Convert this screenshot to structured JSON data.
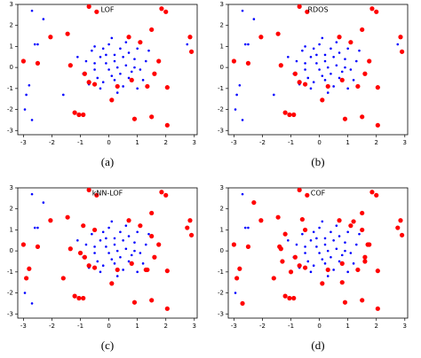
{
  "chart_data": [
    {
      "type": "scatter",
      "title": "LOF",
      "caption": "(a)",
      "xlim": [
        -3.2,
        3.1
      ],
      "ylim": [
        -3.2,
        3.0
      ],
      "xticks": [
        -3,
        -2,
        -1,
        0,
        1,
        2,
        3
      ],
      "yticks": [
        -3,
        -2,
        -1,
        0,
        1,
        2,
        3
      ],
      "series": [
        {
          "color": "#0000ff",
          "x": [
            0.2,
            -0.3,
            0.6,
            0.1,
            -0.5,
            0.9,
            0.4,
            -0.2,
            0.7,
            1.1,
            -0.8,
            0.0,
            0.5,
            -0.6,
            1.0,
            0.3,
            -0.1,
            0.8,
            -0.4,
            0.2,
            1.3,
            -0.9,
            0.6,
            -0.3,
            0.4,
            0.0,
            1.2,
            -0.7,
            0.9,
            -0.2,
            0.5,
            0.1,
            -1.1,
            1.4,
            0.3,
            0.7,
            -0.5,
            0.2,
            1.0,
            -0.1,
            -2.7,
            -2.3,
            -2.6,
            -2.5,
            -2.8,
            -2.9,
            -2.95,
            -2.7,
            -1.6,
            2.75,
            -0.5
          ],
          "values": [
            0.3,
            0.5,
            0.1,
            -0.4,
            -0.1,
            0.4,
            0.9,
            -0.7,
            -0.5,
            -0.1,
            0.3,
            1.1,
            -0.9,
            0.8,
            0.9,
            0.0,
            0.2,
            -0.2,
            -0.5,
            0.6,
            0.3,
            -0.3,
            1.2,
            -1.0,
            -0.3,
            -0.1,
            -0.6,
            -0.8,
            0.0,
            0.9,
            0.5,
            1.4,
            0.5,
            0.8,
            -1.2,
            0.7,
            0.2,
            -0.6,
            -1.0,
            0.6,
            2.7,
            2.3,
            1.1,
            1.1,
            -0.85,
            -1.3,
            -2.0,
            -2.5,
            -1.3,
            1.1,
            1.0
          ]
        },
        {
          "color": "#ff0000",
          "x": [
            -0.7,
            -0.43,
            -1.45,
            -2.05,
            -3.0,
            -2.5,
            -1.35,
            -0.85,
            -0.7,
            -0.5,
            -1.2,
            -1.05,
            -0.9,
            0.1,
            0.3,
            0.9,
            1.5,
            2.05,
            2.05,
            1.35,
            0.8,
            1.6,
            1.75,
            1.1,
            1.85,
            2.0,
            1.5,
            0.7,
            2.9,
            2.85
          ],
          "values": [
            2.9,
            2.65,
            1.6,
            1.45,
            0.3,
            0.2,
            0.1,
            -0.3,
            -0.7,
            -0.8,
            -2.15,
            -2.25,
            -2.25,
            -1.55,
            -0.9,
            -2.45,
            -2.35,
            -2.75,
            -0.95,
            -0.9,
            -0.6,
            -0.3,
            0.3,
            1.2,
            2.8,
            2.65,
            1.8,
            1.45,
            0.75,
            1.45
          ]
        }
      ]
    },
    {
      "type": "scatter",
      "title": "RDOS",
      "caption": "(b)",
      "xlim": [
        -3.2,
        3.1
      ],
      "ylim": [
        -3.2,
        3.0
      ],
      "xticks": [
        -3,
        -2,
        -1,
        0,
        1,
        2,
        3
      ],
      "yticks": [
        -3,
        -2,
        -1,
        0,
        1,
        2,
        3
      ],
      "series": [
        {
          "color": "#0000ff",
          "x": [
            0.2,
            -0.3,
            0.6,
            0.1,
            -0.5,
            0.9,
            0.4,
            -0.2,
            0.7,
            1.1,
            -0.8,
            0.0,
            0.5,
            -0.6,
            1.0,
            0.3,
            -0.1,
            0.8,
            -0.4,
            0.2,
            1.3,
            -0.9,
            0.6,
            -0.3,
            0.4,
            0.0,
            1.2,
            -0.7,
            0.9,
            -0.2,
            0.5,
            0.1,
            -1.1,
            1.4,
            0.3,
            0.7,
            -0.5,
            0.2,
            1.0,
            -0.1,
            -2.7,
            -2.3,
            -2.6,
            -2.5,
            -2.8,
            -2.9,
            -2.95,
            -2.7,
            -1.6,
            2.75,
            -0.5
          ],
          "values": [
            0.3,
            0.5,
            0.1,
            -0.4,
            -0.1,
            0.4,
            0.9,
            -0.7,
            -0.5,
            -0.1,
            0.3,
            1.1,
            -0.9,
            0.8,
            0.9,
            0.0,
            0.2,
            -0.2,
            -0.5,
            0.6,
            0.3,
            -0.3,
            1.2,
            -1.0,
            -0.3,
            -0.1,
            -0.6,
            -0.8,
            0.0,
            0.9,
            0.5,
            1.4,
            0.5,
            0.8,
            -1.2,
            0.7,
            0.2,
            -0.6,
            -1.0,
            0.6,
            2.7,
            2.3,
            1.1,
            1.1,
            -0.85,
            -1.3,
            -2.0,
            -2.5,
            -1.3,
            1.1,
            1.0
          ]
        },
        {
          "color": "#ff0000",
          "x": [
            -0.7,
            -0.43,
            -1.45,
            -2.05,
            -3.0,
            -2.5,
            -1.35,
            -0.85,
            -0.7,
            -0.5,
            -1.2,
            -1.05,
            -0.9,
            0.1,
            0.3,
            0.9,
            1.5,
            2.05,
            2.05,
            1.35,
            0.8,
            1.6,
            1.75,
            1.1,
            1.85,
            2.0,
            1.5,
            0.7,
            2.9,
            2.85
          ],
          "values": [
            2.9,
            2.65,
            1.6,
            1.45,
            0.3,
            0.2,
            0.1,
            -0.3,
            -0.7,
            -0.8,
            -2.15,
            -2.25,
            -2.25,
            -1.55,
            -0.9,
            -2.45,
            -2.35,
            -2.75,
            -0.95,
            -0.9,
            -0.6,
            -0.3,
            0.3,
            1.2,
            2.8,
            2.65,
            1.8,
            1.45,
            0.75,
            1.45
          ]
        }
      ]
    },
    {
      "type": "scatter",
      "title": "kNN-LOF",
      "caption": "(c)",
      "xlim": [
        -3.2,
        3.1
      ],
      "ylim": [
        -3.2,
        3.0
      ],
      "xticks": [
        -3,
        -2,
        -1,
        0,
        1,
        2,
        3
      ],
      "yticks": [
        -3,
        -2,
        -1,
        0,
        1,
        2,
        3
      ],
      "series": [
        {
          "color": "#0000ff",
          "x": [
            0.2,
            -0.3,
            0.6,
            0.1,
            -0.5,
            0.9,
            0.4,
            -0.2,
            0.7,
            1.1,
            -0.8,
            0.0,
            0.5,
            -0.6,
            1.0,
            0.3,
            -0.1,
            0.8,
            -0.4,
            0.2,
            1.3,
            -0.9,
            0.6,
            -0.3,
            0.4,
            0.0,
            1.2,
            -0.7,
            0.9,
            -0.2,
            0.5,
            0.1,
            -1.1,
            1.4,
            0.3,
            0.7,
            -0.5,
            0.2,
            1.0,
            -0.1,
            -2.7,
            -2.3,
            -2.6,
            -2.5,
            -2.95,
            -2.7
          ],
          "values": [
            0.3,
            0.5,
            0.1,
            -0.4,
            -0.1,
            0.4,
            0.9,
            -0.7,
            -0.5,
            -0.1,
            0.3,
            1.1,
            -0.9,
            0.8,
            0.9,
            0.0,
            0.2,
            -0.2,
            -0.5,
            0.6,
            0.3,
            -0.3,
            1.2,
            -1.0,
            -0.3,
            -0.1,
            -0.6,
            -0.8,
            0.0,
            0.9,
            0.5,
            1.4,
            0.5,
            0.8,
            -1.2,
            0.7,
            0.2,
            -0.6,
            -1.0,
            0.6,
            2.7,
            2.3,
            1.1,
            1.1,
            -2.0,
            -2.5
          ]
        },
        {
          "color": "#ff0000",
          "x": [
            -0.7,
            -0.43,
            -1.45,
            -2.05,
            -3.0,
            -2.5,
            -1.35,
            -0.85,
            -0.7,
            -0.5,
            -1.2,
            -1.05,
            -0.9,
            0.1,
            0.3,
            0.9,
            1.5,
            2.05,
            2.05,
            1.35,
            0.8,
            1.6,
            1.75,
            1.1,
            1.85,
            2.0,
            1.5,
            0.7,
            2.9,
            2.85,
            -2.8,
            -2.9,
            -1.6,
            -0.9,
            -1.0,
            1.5,
            1.3,
            -0.5,
            2.75
          ],
          "values": [
            2.9,
            2.65,
            1.6,
            1.45,
            0.3,
            0.2,
            0.1,
            -0.3,
            -0.7,
            -0.8,
            -2.15,
            -2.25,
            -2.25,
            -1.55,
            -0.9,
            -2.45,
            -2.35,
            -2.75,
            -0.95,
            -0.9,
            -0.6,
            -0.3,
            0.3,
            1.2,
            2.8,
            2.65,
            1.8,
            1.45,
            0.75,
            1.45,
            -0.85,
            -1.3,
            -1.3,
            1.2,
            -0.1,
            0.7,
            -0.9,
            1.0,
            1.1
          ]
        }
      ]
    },
    {
      "type": "scatter",
      "title": "COF",
      "caption": "(d)",
      "xlim": [
        -3.2,
        3.1
      ],
      "ylim": [
        -3.2,
        3.0
      ],
      "xticks": [
        -3,
        -2,
        -1,
        0,
        1,
        2,
        3
      ],
      "yticks": [
        -3,
        -2,
        -1,
        0,
        1,
        2,
        3
      ],
      "series": [
        {
          "color": "#0000ff",
          "x": [
            0.2,
            -0.3,
            0.6,
            0.1,
            -0.5,
            0.9,
            0.4,
            -0.2,
            0.7,
            1.1,
            -0.8,
            0.0,
            0.5,
            -0.6,
            1.0,
            0.3,
            -0.1,
            0.8,
            -0.4,
            0.2,
            1.3,
            -0.9,
            0.6,
            -0.3,
            0.4,
            0.0,
            1.2,
            -0.7,
            0.9,
            -0.2,
            0.5,
            0.1,
            -1.1,
            1.4,
            0.3,
            0.7,
            -0.5,
            0.2,
            1.0,
            -0.1,
            -2.7,
            -2.6,
            -2.5,
            -2.95
          ],
          "values": [
            0.3,
            0.5,
            0.1,
            -0.4,
            -0.1,
            0.4,
            0.9,
            -0.7,
            -0.5,
            -0.1,
            0.3,
            1.1,
            -0.9,
            0.8,
            0.9,
            0.0,
            0.2,
            -0.2,
            -0.5,
            0.6,
            0.3,
            -0.3,
            1.2,
            -1.0,
            -0.3,
            -0.1,
            -0.6,
            -0.8,
            0.0,
            0.9,
            0.5,
            1.4,
            0.5,
            0.8,
            -1.2,
            0.7,
            0.2,
            -0.6,
            -1.0,
            0.6,
            2.7,
            1.1,
            1.1,
            -2.0
          ]
        },
        {
          "color": "#ff0000",
          "x": [
            -0.7,
            -0.43,
            -1.45,
            -2.05,
            -3.0,
            -2.5,
            -1.35,
            -0.85,
            -0.7,
            -0.5,
            -1.2,
            -1.05,
            -0.9,
            0.1,
            0.3,
            0.9,
            1.5,
            2.05,
            2.05,
            1.35,
            0.8,
            1.6,
            1.75,
            1.1,
            1.85,
            2.0,
            1.5,
            0.7,
            2.9,
            2.85,
            -2.3,
            -2.8,
            -2.9,
            -2.7,
            -1.6,
            2.75,
            -0.5,
            -1.2,
            -1.3,
            -1.0,
            1.5,
            1.6,
            1.2,
            -0.6,
            0.8,
            -1.4,
            1.7
          ],
          "values": [
            2.9,
            2.65,
            1.6,
            1.45,
            0.3,
            0.2,
            0.1,
            -0.3,
            -0.7,
            -0.8,
            -2.15,
            -2.25,
            -2.25,
            -1.55,
            -0.9,
            -2.45,
            -2.35,
            -2.75,
            -0.95,
            -0.9,
            -0.6,
            -0.3,
            0.3,
            1.2,
            2.8,
            2.65,
            1.8,
            1.45,
            0.75,
            1.45,
            2.3,
            -0.85,
            -1.3,
            -2.5,
            -1.3,
            1.1,
            1.0,
            0.8,
            -0.5,
            -1.0,
            1.0,
            -0.5,
            1.4,
            1.5,
            -1.5,
            0.2,
            0.3
          ]
        }
      ]
    }
  ]
}
